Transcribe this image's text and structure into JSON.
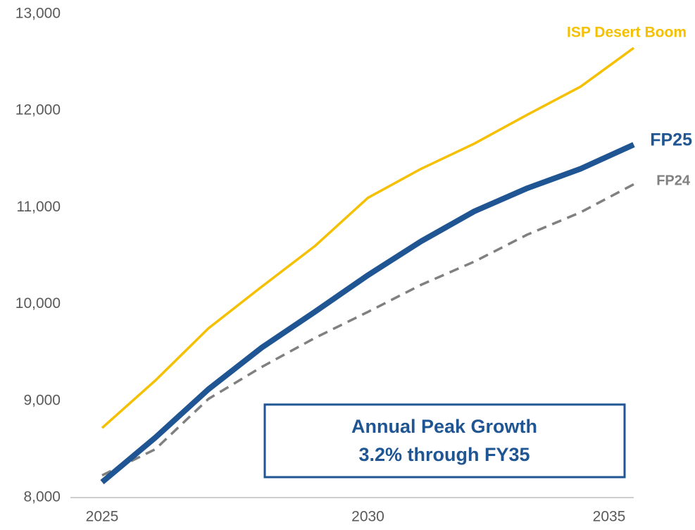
{
  "chart_data": {
    "type": "line",
    "x": [
      2025,
      2026,
      2027,
      2028,
      2029,
      2030,
      2031,
      2032,
      2033,
      2034,
      2035
    ],
    "xlim": [
      2025,
      2035
    ],
    "xticks": [
      2025,
      2030,
      2035
    ],
    "ylim": [
      8000,
      13000
    ],
    "yticks": [
      {
        "value": 8000,
        "label": "8,000"
      },
      {
        "value": 9000,
        "label": "9,000"
      },
      {
        "value": 10000,
        "label": "10,000"
      },
      {
        "value": 11000,
        "label": "11,000"
      },
      {
        "value": 12000,
        "label": "12,000"
      },
      {
        "value": 13000,
        "label": "13,000"
      }
    ],
    "grid": false,
    "series": [
      {
        "name": "ISP Desert Boom",
        "color": "#f5c000",
        "line_style": "solid",
        "values": [
          8720,
          9210,
          9750,
          10180,
          10600,
          11100,
          11400,
          11660,
          11960,
          12250,
          12650
        ]
      },
      {
        "name": "FP25",
        "color": "#1f5592",
        "line_style": "solid",
        "values": [
          8160,
          8620,
          9120,
          9550,
          9920,
          10300,
          10650,
          10960,
          11200,
          11400,
          11650
        ]
      },
      {
        "name": "FP24",
        "color": "#808080",
        "line_style": "dashed",
        "values": [
          8230,
          8500,
          9020,
          9350,
          9650,
          9920,
          10200,
          10440,
          10720,
          10950,
          11240
        ]
      }
    ],
    "annotation": [
      "Annual Peak Growth",
      "3.2% through FY35"
    ]
  }
}
